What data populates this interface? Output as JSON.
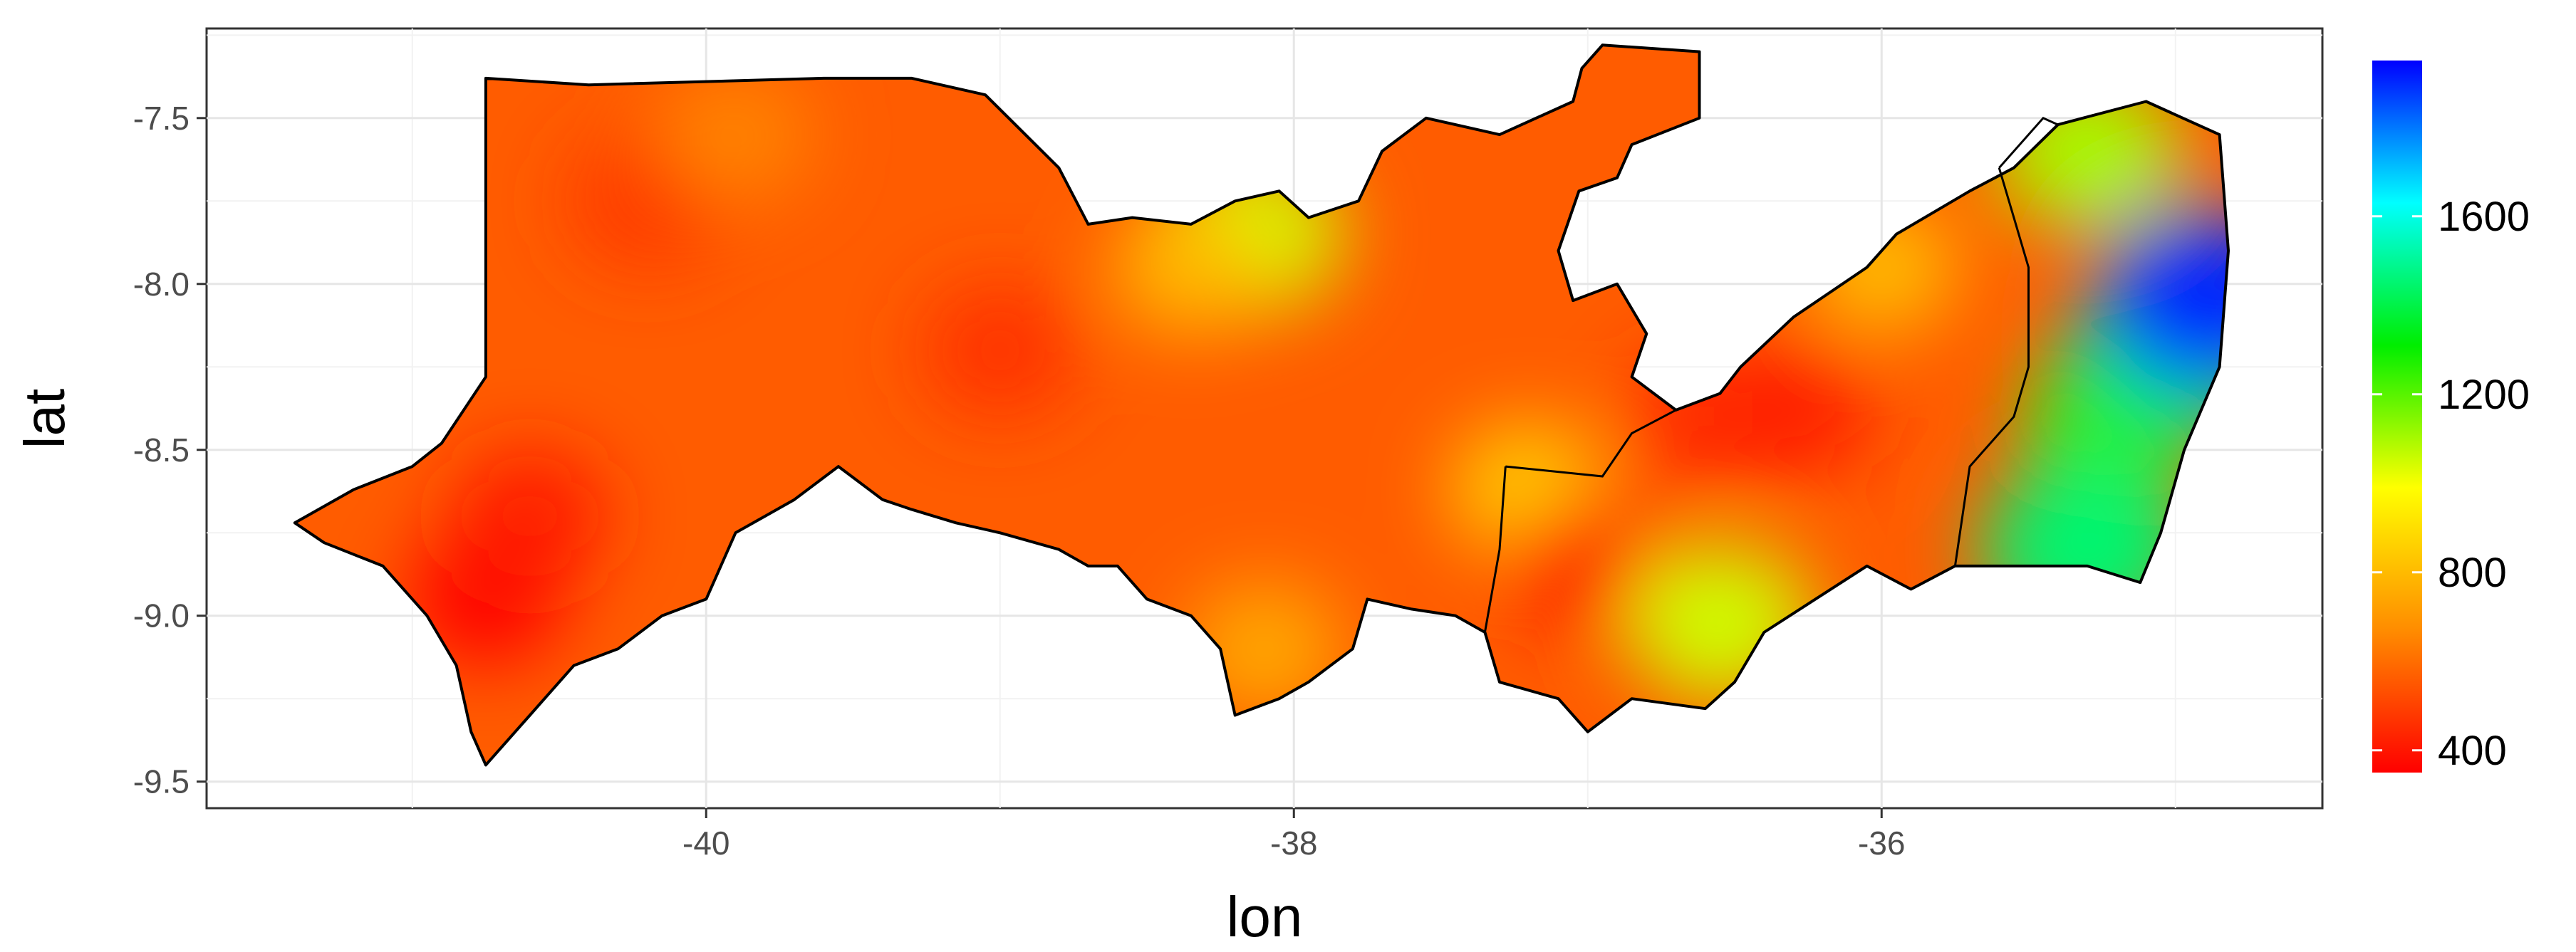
{
  "chart_data": {
    "type": "heatmap",
    "title": "",
    "xlabel": "lon",
    "ylabel": "lat",
    "xlim": [
      -41.7,
      -34.5
    ],
    "ylim": [
      -9.58,
      -7.23
    ],
    "x_ticks": [
      -40,
      -38,
      -36
    ],
    "x_tick_labels": [
      "-40",
      "-38",
      "-36"
    ],
    "y_ticks": [
      -7.5,
      -8.0,
      -8.5,
      -9.0,
      -9.5
    ],
    "y_tick_labels": [
      "-7.5",
      "-8.0",
      "-8.5",
      "-9.0",
      "-9.5"
    ],
    "grid": true,
    "legend": {
      "placement": "right",
      "min": 350,
      "max": 1950,
      "ticks": [
        400,
        800,
        1200,
        1600
      ],
      "tick_labels": [
        "400",
        "800",
        "1200",
        "1600"
      ],
      "colors": [
        "#ff0000",
        "#ff8c00",
        "#ffff00",
        "#00ee00",
        "#00ffff",
        "#0000ff"
      ]
    },
    "outline_border_color": "#000000",
    "outline": [
      [
        -41.4,
        -8.72
      ],
      [
        -41.2,
        -8.62
      ],
      [
        -41.0,
        -8.55
      ],
      [
        -40.9,
        -8.48
      ],
      [
        -40.75,
        -8.28
      ],
      [
        -40.75,
        -7.38
      ],
      [
        -40.4,
        -7.4
      ],
      [
        -39.6,
        -7.38
      ],
      [
        -39.3,
        -7.38
      ],
      [
        -39.05,
        -7.43
      ],
      [
        -38.8,
        -7.65
      ],
      [
        -38.7,
        -7.82
      ],
      [
        -38.55,
        -7.8
      ],
      [
        -38.35,
        -7.82
      ],
      [
        -38.2,
        -7.75
      ],
      [
        -38.05,
        -7.72
      ],
      [
        -37.95,
        -7.8
      ],
      [
        -37.78,
        -7.75
      ],
      [
        -37.7,
        -7.6
      ],
      [
        -37.55,
        -7.5
      ],
      [
        -37.3,
        -7.55
      ],
      [
        -37.05,
        -7.45
      ],
      [
        -37.02,
        -7.35
      ],
      [
        -36.95,
        -7.28
      ],
      [
        -36.62,
        -7.3
      ],
      [
        -36.62,
        -7.5
      ],
      [
        -36.85,
        -7.58
      ],
      [
        -36.9,
        -7.68
      ],
      [
        -37.03,
        -7.72
      ],
      [
        -37.1,
        -7.9
      ],
      [
        -37.05,
        -8.05
      ],
      [
        -36.9,
        -8.0
      ],
      [
        -36.8,
        -8.15
      ],
      [
        -36.85,
        -8.28
      ],
      [
        -36.7,
        -8.38
      ],
      [
        -36.55,
        -8.33
      ],
      [
        -36.48,
        -8.25
      ],
      [
        -36.3,
        -8.1
      ],
      [
        -36.05,
        -7.95
      ],
      [
        -35.95,
        -7.85
      ],
      [
        -35.7,
        -7.72
      ],
      [
        -35.55,
        -7.65
      ],
      [
        -35.4,
        -7.52
      ],
      [
        -35.1,
        -7.45
      ],
      [
        -34.85,
        -7.55
      ],
      [
        -34.82,
        -7.9
      ],
      [
        -34.85,
        -8.25
      ],
      [
        -34.97,
        -8.5
      ],
      [
        -35.05,
        -8.75
      ],
      [
        -35.12,
        -8.9
      ],
      [
        -35.3,
        -8.85
      ],
      [
        -35.55,
        -8.85
      ],
      [
        -35.75,
        -8.85
      ],
      [
        -35.9,
        -8.92
      ],
      [
        -36.05,
        -8.85
      ],
      [
        -36.4,
        -9.05
      ],
      [
        -36.5,
        -9.2
      ],
      [
        -36.6,
        -9.28
      ],
      [
        -36.85,
        -9.25
      ],
      [
        -37.0,
        -9.35
      ],
      [
        -37.1,
        -9.25
      ],
      [
        -37.3,
        -9.2
      ],
      [
        -37.35,
        -9.05
      ],
      [
        -37.45,
        -9.0
      ],
      [
        -37.6,
        -8.98
      ],
      [
        -37.75,
        -8.95
      ],
      [
        -37.8,
        -9.1
      ],
      [
        -37.95,
        -9.2
      ],
      [
        -38.05,
        -9.25
      ],
      [
        -38.2,
        -9.3
      ],
      [
        -38.25,
        -9.1
      ],
      [
        -38.35,
        -9.0
      ],
      [
        -38.5,
        -8.95
      ],
      [
        -38.6,
        -8.85
      ],
      [
        -38.7,
        -8.85
      ],
      [
        -38.8,
        -8.8
      ],
      [
        -39.0,
        -8.75
      ],
      [
        -39.15,
        -8.72
      ],
      [
        -39.3,
        -8.68
      ],
      [
        -39.4,
        -8.65
      ],
      [
        -39.55,
        -8.55
      ],
      [
        -39.7,
        -8.65
      ],
      [
        -39.8,
        -8.7
      ],
      [
        -39.9,
        -8.75
      ],
      [
        -40.0,
        -8.95
      ],
      [
        -40.15,
        -9.0
      ],
      [
        -40.3,
        -9.1
      ],
      [
        -40.45,
        -9.15
      ],
      [
        -40.6,
        -9.3
      ],
      [
        -40.75,
        -9.45
      ],
      [
        -40.8,
        -9.35
      ],
      [
        -40.85,
        -9.15
      ],
      [
        -40.95,
        -9.0
      ],
      [
        -41.1,
        -8.85
      ],
      [
        -41.3,
        -8.78
      ],
      [
        -41.4,
        -8.72
      ]
    ],
    "internal_borders": [
      [
        [
          -37.28,
          -8.55
        ],
        [
          -37.3,
          -8.8
        ],
        [
          -37.35,
          -9.05
        ]
      ],
      [
        [
          -37.28,
          -8.55
        ],
        [
          -36.95,
          -8.58
        ],
        [
          -36.85,
          -8.45
        ],
        [
          -36.7,
          -8.38
        ]
      ],
      [
        [
          -35.6,
          -7.65
        ],
        [
          -35.55,
          -7.8
        ],
        [
          -35.5,
          -7.95
        ],
        [
          -35.5,
          -8.25
        ],
        [
          -35.55,
          -8.4
        ],
        [
          -35.7,
          -8.55
        ],
        [
          -35.75,
          -8.85
        ]
      ],
      [
        [
          -35.6,
          -7.65
        ],
        [
          -35.45,
          -7.5
        ],
        [
          -35.4,
          -7.52
        ]
      ]
    ],
    "hotspots": [
      {
        "lon": -40.75,
        "lat": -8.95,
        "value": 350
      },
      {
        "lon": -40.6,
        "lat": -8.7,
        "value": 420
      },
      {
        "lon": -40.2,
        "lat": -7.75,
        "value": 480
      },
      {
        "lon": -39.9,
        "lat": -7.55,
        "value": 650
      },
      {
        "lon": -39.0,
        "lat": -8.2,
        "value": 460
      },
      {
        "lon": -38.15,
        "lat": -7.85,
        "value": 1050
      },
      {
        "lon": -38.35,
        "lat": -7.95,
        "value": 800
      },
      {
        "lon": -38.1,
        "lat": -9.1,
        "value": 750
      },
      {
        "lon": -37.2,
        "lat": -8.62,
        "value": 850
      },
      {
        "lon": -37.0,
        "lat": -8.85,
        "value": 420
      },
      {
        "lon": -36.55,
        "lat": -9.02,
        "value": 1050
      },
      {
        "lon": -36.6,
        "lat": -8.4,
        "value": 450
      },
      {
        "lon": -36.3,
        "lat": -8.38,
        "value": 420
      },
      {
        "lon": -36.0,
        "lat": -7.95,
        "value": 800
      },
      {
        "lon": -35.3,
        "lat": -7.6,
        "value": 1100
      },
      {
        "lon": -35.2,
        "lat": -8.4,
        "value": 1250
      },
      {
        "lon": -35.0,
        "lat": -8.2,
        "value": 1400
      },
      {
        "lon": -34.9,
        "lat": -8.05,
        "value": 1900
      },
      {
        "lon": -35.3,
        "lat": -8.8,
        "value": 1450
      }
    ]
  }
}
